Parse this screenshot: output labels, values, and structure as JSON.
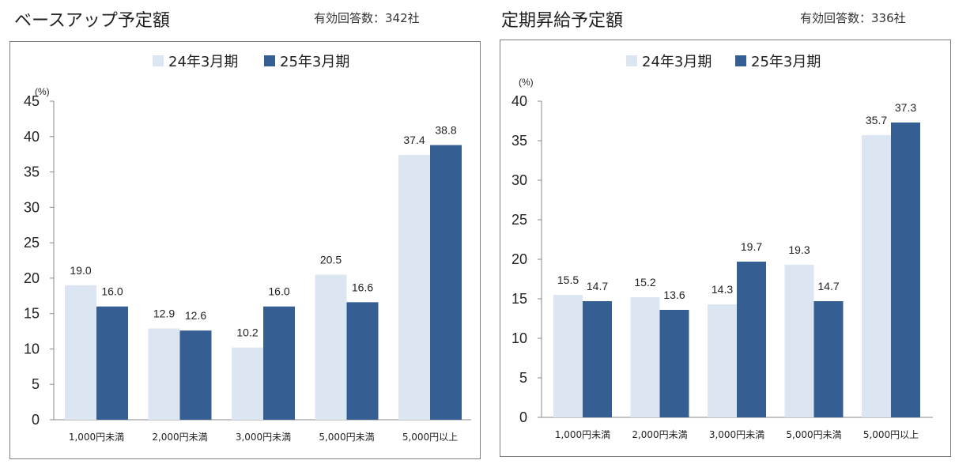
{
  "panels": [
    {
      "title": "ベースアップ予定額",
      "respondents": "有効回答数：342社"
    },
    {
      "title": "定期昇給予定額",
      "respondents": "有効回答数：336社"
    }
  ],
  "colors": {
    "series_24": "#dce6f2",
    "series_25": "#355f93",
    "frame": "#7f7f7f",
    "axis": "#888888"
  },
  "chart_data": [
    {
      "type": "bar",
      "title": "ベースアップ予定額",
      "unit_label": "(%)",
      "categories": [
        "1,000円未満",
        "2,000円未満",
        "3,000円未満",
        "5,000円未満",
        "5,000円以上"
      ],
      "series": [
        {
          "name": "24年3月期",
          "values": [
            19.0,
            12.9,
            10.2,
            20.5,
            37.4
          ]
        },
        {
          "name": "25年3月期",
          "values": [
            16.0,
            12.6,
            16.0,
            16.6,
            38.8
          ]
        }
      ],
      "ylim": [
        0,
        45
      ],
      "yticks": [
        0,
        5,
        10,
        15,
        20,
        25,
        30,
        35,
        40,
        45
      ],
      "legend": "top-center",
      "grid": false
    },
    {
      "type": "bar",
      "title": "定期昇給予定額",
      "unit_label": "(%)",
      "categories": [
        "1,000円未満",
        "2,000円未満",
        "3,000円未満",
        "5,000円未満",
        "5,000円以上"
      ],
      "series": [
        {
          "name": "24年3月期",
          "values": [
            15.5,
            15.2,
            14.3,
            19.3,
            35.7
          ]
        },
        {
          "name": "25年3月期",
          "values": [
            14.7,
            13.6,
            19.7,
            14.7,
            37.3
          ]
        }
      ],
      "ylim": [
        0,
        40
      ],
      "yticks": [
        0,
        5,
        10,
        15,
        20,
        25,
        30,
        35,
        40
      ],
      "legend": "top-center",
      "grid": false
    }
  ]
}
